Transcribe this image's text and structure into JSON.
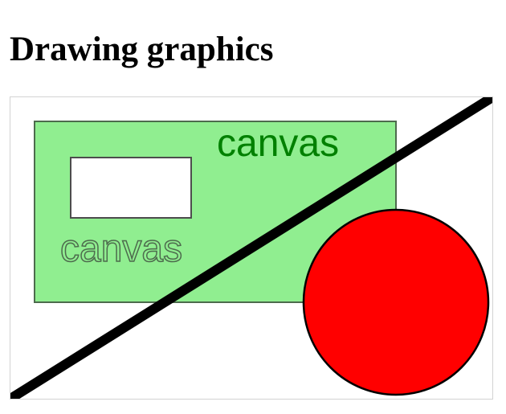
{
  "page": {
    "title": "Drawing graphics"
  },
  "canvas": {
    "filled_text": "canvas",
    "stroked_text": "canvas",
    "colors": {
      "border": "#d3d3d3",
      "big_rect_fill": "#90ee90",
      "big_rect_stroke": "#4d6b4d",
      "inner_rect_fill": "#ffffff",
      "inner_rect_stroke": "#4d4d4d",
      "filled_text": "#008000",
      "stroked_text": "#4d6b4d",
      "line": "#000000",
      "circle_fill": "#ff0000",
      "circle_stroke": "#000000"
    }
  }
}
